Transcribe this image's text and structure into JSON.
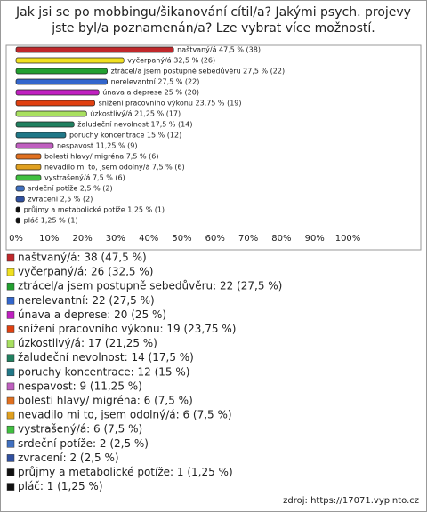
{
  "chart_data": {
    "type": "bar",
    "orientation": "horizontal",
    "title": "Jak jsi se po mobbingu/šikanování cítil/a? Jakými psych. projevy jste byl/a poznamenán/a? Lze vybrat více možností.",
    "categories": [
      "naštvaný/á",
      "vyčerpaný/á",
      "ztrácel/a jsem postupně sebedůvěru",
      "nerelevantní",
      "únava a deprese",
      "snížení pracovního výkonu",
      "úzkostlivý/á",
      "žaludeční nevolnost",
      "poruchy koncentrace",
      "nespavost",
      "bolesti hlavy/ migréna",
      "nevadilo mi to, jsem odolný/á",
      "vystrašený/á",
      "srdeční potíže",
      "zvracení",
      "průjmy a metabolické potíže",
      "pláč"
    ],
    "values": [
      47.5,
      32.5,
      27.5,
      27.5,
      25,
      23.75,
      21.25,
      17.5,
      15,
      11.25,
      7.5,
      7.5,
      7.5,
      2.5,
      2.5,
      1.25,
      1.25
    ],
    "value_labels": [
      "naštvaný/á 47,5 % (38)",
      "vyčerpaný/á 32,5 % (26)",
      "ztrácel/a jsem postupně sebedůvěru 27,5 % (22)",
      "nerelevantní 27,5 % (22)",
      "únava a deprese 25 % (20)",
      "snížení pracovního výkonu 23,75 % (19)",
      "úzkostlivý/á 21,25 % (17)",
      "žaludeční nevolnost 17,5 % (14)",
      "poruchy koncentrace 15 % (12)",
      "nespavost 11,25 % (9)",
      "bolesti hlavy/ migréna 7,5 % (6)",
      "nevadilo mi to, jsem odolný/á 7,5 % (6)",
      "vystrašený/á 7,5 % (6)",
      "srdeční potíže 2,5 % (2)",
      "zvracení 2,5 % (2)",
      "průjmy a metabolické potíže 1,25 % (1)",
      "pláč 1,25 % (1)"
    ],
    "legend_labels": [
      "naštvaný/á: 38 (47,5 %)",
      "vyčerpaný/á: 26 (32,5 %)",
      "ztrácel/a jsem postupně sebedůvěru: 22 (27,5 %)",
      "nerelevantní: 22 (27,5 %)",
      "únava a deprese: 20 (25 %)",
      "snížení pracovního výkonu: 19 (23,75 %)",
      "úzkostlivý/á: 17 (21,25 %)",
      "žaludeční nevolnost: 14 (17,5 %)",
      "poruchy koncentrace: 12 (15 %)",
      "nespavost: 9 (11,25 %)",
      "bolesti hlavy/ migréna: 6 (7,5 %)",
      "nevadilo mi to, jsem odolný/á: 6 (7,5 %)",
      "vystrašený/á: 6 (7,5 %)",
      "srdeční potíže: 2 (2,5 %)",
      "zvracení: 2 (2,5 %)",
      "průjmy a metabolické potíže: 1 (1,25 %)",
      "pláč: 1 (1,25 %)"
    ],
    "colors": [
      "#c0282b",
      "#f0e020",
      "#22a030",
      "#3366cc",
      "#c020c0",
      "#e04010",
      "#a8e060",
      "#208060",
      "#207888",
      "#c060c0",
      "#e07020",
      "#e0a020",
      "#40c040",
      "#4070c0",
      "#3050a0",
      "#111111",
      "#111111"
    ],
    "xlim": [
      0,
      100
    ],
    "xticks": [
      {
        "value": 0,
        "label": "0%"
      },
      {
        "value": 10,
        "label": "10%"
      },
      {
        "value": 20,
        "label": "20%"
      },
      {
        "value": 30,
        "label": "30%"
      },
      {
        "value": 40,
        "label": "40%"
      },
      {
        "value": 50,
        "label": "50%"
      },
      {
        "value": 60,
        "label": "60%"
      },
      {
        "value": 70,
        "label": "70%"
      },
      {
        "value": 80,
        "label": "80%"
      },
      {
        "value": 90,
        "label": "90%"
      },
      {
        "value": 100,
        "label": "100%"
      }
    ],
    "source": "zdroj: https://17071.vyplnto.cz"
  }
}
